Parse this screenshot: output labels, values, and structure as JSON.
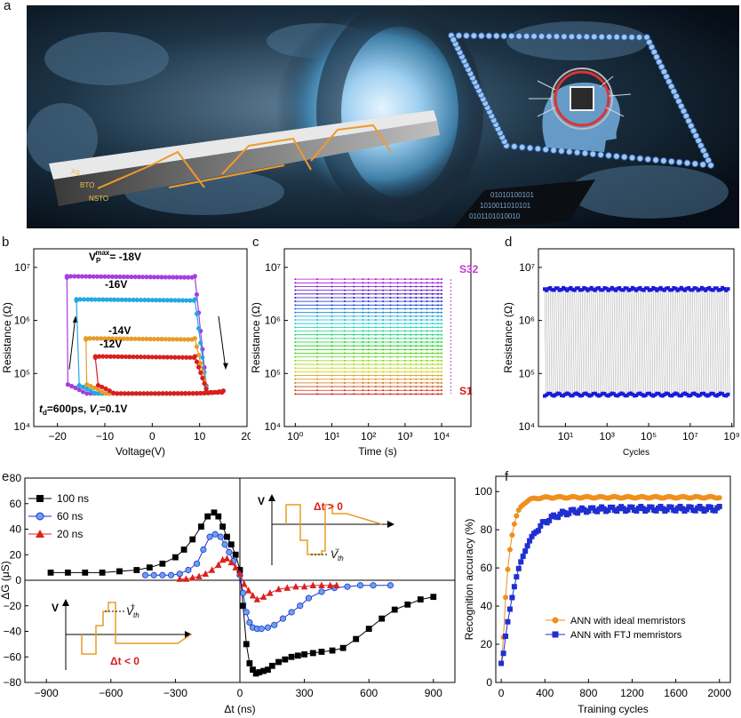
{
  "panel_labels": {
    "a": "a",
    "b": "b",
    "c": "c",
    "d": "d",
    "e": "e",
    "f": "f"
  },
  "illustration": {
    "layer_labels": [
      "Ag",
      "BTO",
      "NSTO"
    ]
  },
  "chart_data": [
    {
      "id": "b",
      "type": "line",
      "xlabel": "Voltage(V)",
      "ylabel": "Resistance (Ω)",
      "xlim": [
        -25,
        20
      ],
      "ylim_log10": [
        4,
        7.35
      ],
      "xticks": [
        -20,
        -10,
        0,
        10,
        20
      ],
      "yticks": [
        "10⁴",
        "10⁵",
        "10⁶",
        "10⁷"
      ],
      "annotations": {
        "vp_max": "V",
        "vp_sub": "P",
        "vp_sup": "max",
        "vp_val": "= -18V",
        "a16": "-16V",
        "a14": "-14V",
        "a12": "-12V",
        "cond_td": "t",
        "cond_td_sub": "d",
        "cond_td_val": "=600ps, ",
        "cond_vr": "V",
        "cond_vr_sub": "r",
        "cond_vr_val": "=0.1V"
      },
      "series": [
        {
          "name": "-18V",
          "color": "#a43ee0",
          "hrs": 6800000.0,
          "vmin": -18
        },
        {
          "name": "-16V",
          "color": "#22a9df",
          "hrs": 2500000.0,
          "vmin": -16
        },
        {
          "name": "-14V",
          "color": "#e89b2a",
          "hrs": 460000.0,
          "vmin": -14
        },
        {
          "name": "-12V",
          "color": "#d91e1e",
          "hrs": 210000.0,
          "vmin": -12
        }
      ],
      "lrs": 42000.0,
      "vmax": 15
    },
    {
      "id": "c",
      "type": "line",
      "xlabel": "Time (s)",
      "ylabel": "Resistance (Ω)",
      "xlim_log10": [
        -0.3,
        4.8
      ],
      "ylim_log10": [
        4,
        7.35
      ],
      "xticks": [
        "10⁰",
        "10¹",
        "10²",
        "10³",
        "10⁴"
      ],
      "yticks": [
        "10⁴",
        "10⁵",
        "10⁶",
        "10⁷"
      ],
      "state_count": 32,
      "r_min": 41000.0,
      "r_max": 6000000.0,
      "labels": {
        "top": "S32",
        "bottom": "S1"
      },
      "top_color": "#c03ad0",
      "bottom_color": "#d31e1e"
    },
    {
      "id": "d",
      "type": "line",
      "xlabel": "Cycles",
      "ylabel": "Resistance (Ω)",
      "xlim_log10": [
        -0.3,
        9.1
      ],
      "ylim_log10": [
        4,
        7.35
      ],
      "xticks": [
        "10¹",
        "10³",
        "10⁵",
        "10⁷",
        "10⁹"
      ],
      "yticks": [
        "10⁴",
        "10⁵",
        "10⁶",
        "10⁷"
      ],
      "hrs": 3900000.0,
      "lrs": 40000.0,
      "color": "#1a1ad8"
    },
    {
      "id": "e",
      "type": "line",
      "xlabel": "Δt (ns)",
      "ylabel": "ΔG (μS)",
      "xlim": [
        -1000,
        1000
      ],
      "ylim": [
        -80,
        80
      ],
      "xticks": [
        -900,
        -600,
        -300,
        0,
        300,
        600,
        900
      ],
      "yticks": [
        -80,
        -60,
        -40,
        -20,
        0,
        20,
        40,
        60,
        80
      ],
      "series": [
        {
          "name": "100 ns",
          "color": "#000000",
          "marker": "square",
          "x": [
            -880,
            -800,
            -720,
            -640,
            -560,
            -480,
            -420,
            -360,
            -300,
            -260,
            -220,
            -180,
            -150,
            -120,
            -100,
            -80,
            -60,
            -40,
            -20,
            0,
            15,
            30,
            45,
            60,
            75,
            90,
            110,
            130,
            150,
            180,
            210,
            240,
            270,
            300,
            340,
            380,
            430,
            480,
            540,
            600,
            660,
            720,
            780,
            840,
            900
          ],
          "y": [
            6,
            6,
            6,
            6,
            7,
            8,
            10,
            13,
            18,
            24,
            32,
            42,
            50,
            53,
            50,
            42,
            34,
            28,
            20,
            8,
            -20,
            -50,
            -65,
            -70,
            -73,
            -72,
            -71,
            -70,
            -67,
            -64,
            -62,
            -60,
            -59,
            -58,
            -57,
            -56,
            -55,
            -53,
            -46,
            -38,
            -30,
            -23,
            -19,
            -15,
            -13
          ]
        },
        {
          "name": "60 ns",
          "color": "#2233cc",
          "marker": "circle",
          "x": [
            -440,
            -400,
            -360,
            -320,
            -280,
            -240,
            -200,
            -170,
            -140,
            -115,
            -90,
            -70,
            -50,
            -30,
            0,
            15,
            30,
            45,
            60,
            80,
            100,
            130,
            160,
            200,
            240,
            280,
            320,
            380,
            440,
            500,
            560,
            620,
            700
          ],
          "y": [
            4,
            4,
            4,
            4,
            5,
            8,
            13,
            24,
            34,
            36,
            34,
            28,
            22,
            15,
            4,
            -10,
            -25,
            -33,
            -37,
            -38,
            -38,
            -37,
            -35,
            -30,
            -25,
            -20,
            -14,
            -9,
            -6,
            -5,
            -4,
            -4,
            -4
          ]
        },
        {
          "name": "20 ns",
          "color": "#dd1f1f",
          "marker": "triangle",
          "x": [
            -280,
            -250,
            -220,
            -190,
            -160,
            -130,
            -100,
            -80,
            -60,
            -40,
            -20,
            0,
            20,
            40,
            60,
            80,
            110,
            140,
            180,
            220,
            260,
            300,
            340,
            380,
            420,
            450
          ],
          "y": [
            1,
            1,
            2,
            3,
            5,
            8,
            12,
            16,
            17,
            14,
            10,
            5,
            -3,
            -8,
            -12,
            -15,
            -13,
            -10,
            -7,
            -6,
            -5,
            -5,
            -4,
            -4,
            -4,
            -4
          ]
        }
      ],
      "inset_pos": {
        "axis": "V",
        "th": "V",
        "th_sub": "th",
        "th_sup": "−",
        "cond": "Δt > 0"
      },
      "inset_neg": {
        "axis": "V",
        "th": "V",
        "th_sub": "th",
        "th_sup": "+",
        "cond": "Δt < 0"
      }
    },
    {
      "id": "f",
      "type": "line",
      "xlabel": "Training cycles",
      "ylabel": "Recognition accuracy (%)",
      "xlim": [
        -50,
        2100
      ],
      "ylim": [
        0,
        108
      ],
      "xticks": [
        0,
        400,
        800,
        1200,
        1600,
        2000
      ],
      "yticks": [
        0,
        20,
        40,
        60,
        80,
        100
      ],
      "series": [
        {
          "name": "ANN with ideal memristors",
          "color": "#ef8f1e",
          "marker": "circle",
          "plateau": 97,
          "rise": 60
        },
        {
          "name": "ANN with FTJ memristors",
          "color": "#1f2fd0",
          "marker": "square",
          "plateau": 91,
          "rise": 160
        }
      ]
    }
  ]
}
